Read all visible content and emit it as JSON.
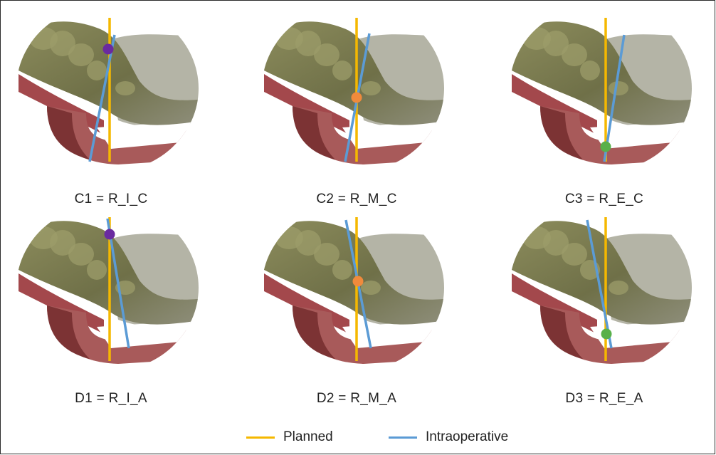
{
  "panels": [
    {
      "caption": "C1 = R_I_C",
      "marker_color": "#6a2aa0"
    },
    {
      "caption": "C2 = R_M_C",
      "marker_color": "#f08a3c"
    },
    {
      "caption": "C3 = R_E_C",
      "marker_color": "#58b04a"
    },
    {
      "caption": "D1 = R_I_A",
      "marker_color": "#6a2aa0"
    },
    {
      "caption": "D2 = R_M_A",
      "marker_color": "#f08a3c"
    },
    {
      "caption": "D3 = R_E_A",
      "marker_color": "#58b04a"
    }
  ],
  "legend": {
    "planned": {
      "label": "Planned",
      "color": "#f5b800"
    },
    "intraoperative": {
      "label": "Intraoperative",
      "color": "#5b9bd5"
    }
  }
}
